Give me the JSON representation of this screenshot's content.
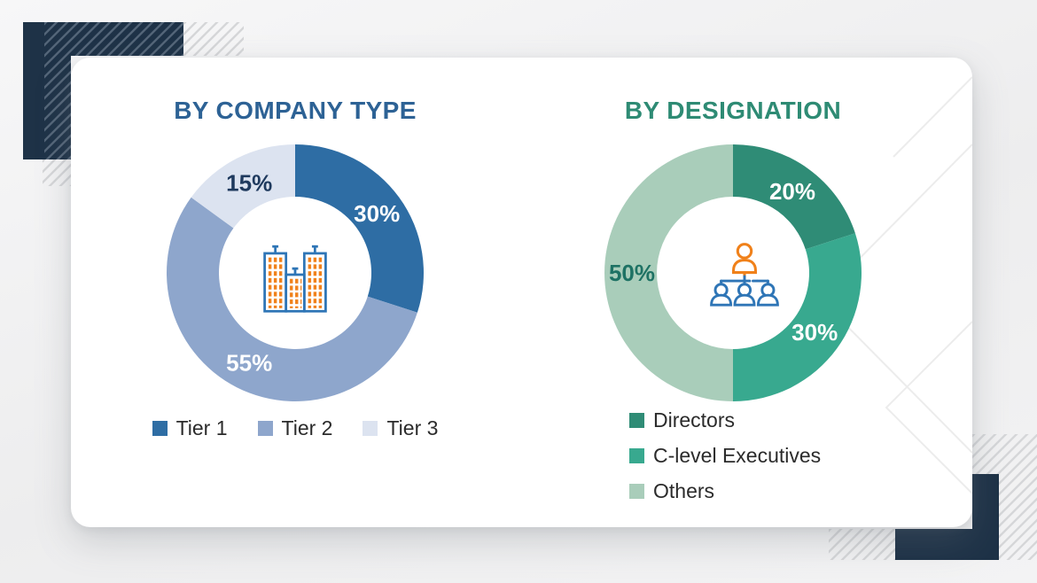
{
  "chart_data": [
    {
      "type": "pie",
      "subtype": "donut",
      "title": "BY COMPANY TYPE",
      "title_color": "#2D6295",
      "categories": [
        "Tier 1",
        "Tier 2",
        "Tier 3"
      ],
      "values": [
        30,
        55,
        15
      ],
      "value_labels": [
        "30%",
        "55%",
        "15%"
      ],
      "colors": [
        "#2E6DA4",
        "#8EA6CC",
        "#DCE3F0"
      ],
      "value_label_colors": [
        "#FFFFFF",
        "#FFFFFF",
        "#1F3A5E"
      ],
      "start_angle_deg": 0,
      "direction": "clockwise",
      "legend_position": "bottom-horizontal",
      "center_icon": "buildings-icon"
    },
    {
      "type": "pie",
      "subtype": "donut",
      "title": "BY DESIGNATION",
      "title_color": "#2E8B74",
      "categories": [
        "Directors",
        "C-level Executives",
        "Others"
      ],
      "values": [
        20,
        30,
        50
      ],
      "value_labels": [
        "20%",
        "30%",
        "50%"
      ],
      "colors": [
        "#2F8C76",
        "#38A98F",
        "#A9CDBA"
      ],
      "value_label_colors": [
        "#FFFFFF",
        "#FFFFFF",
        "#1E7264"
      ],
      "start_angle_deg": 0,
      "direction": "clockwise",
      "legend_position": "bottom-vertical",
      "center_icon": "org-chart-icon"
    }
  ],
  "icons": {
    "buildings_icon": {
      "outline_color": "#2E75B6",
      "window_color": "#F0811A"
    },
    "org_chart_icon": {
      "manager_color": "#F0811A",
      "team_color": "#2E75B6"
    }
  },
  "decor": {
    "corner_block_color": "#1E3247",
    "hatch_line_color": "#D6D7D9",
    "card_background": "#FFFFFF",
    "page_background": "#F1F1F2",
    "legend_text_color": "#2B2B2B"
  }
}
